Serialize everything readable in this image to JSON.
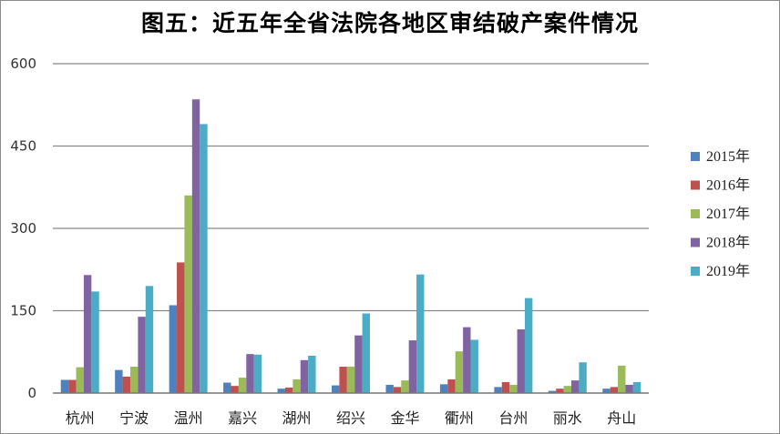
{
  "chart_data": {
    "type": "bar",
    "title": "图五：近五年全省法院各地区审结破产案件情况",
    "xlabel": "",
    "ylabel": "",
    "ylim": [
      0,
      600
    ],
    "yticks": [
      "0",
      "150",
      "300",
      "450",
      "600"
    ],
    "grid": true,
    "legend_position": "right",
    "categories": [
      "杭州",
      "宁波",
      "温州",
      "嘉兴",
      "湖州",
      "绍兴",
      "金华",
      "衢州",
      "台州",
      "丽水",
      "舟山"
    ],
    "series": [
      {
        "name": "2015年",
        "color": "#4f81bd",
        "values": [
          24,
          42,
          160,
          19,
          8,
          14,
          15,
          16,
          11,
          4,
          8
        ]
      },
      {
        "name": "2016年",
        "color": "#c0504d",
        "values": [
          24,
          30,
          238,
          13,
          10,
          48,
          11,
          25,
          20,
          8,
          11
        ]
      },
      {
        "name": "2017年",
        "color": "#9bbb59",
        "values": [
          47,
          48,
          360,
          28,
          25,
          48,
          23,
          76,
          15,
          13,
          50
        ]
      },
      {
        "name": "2018年",
        "color": "#8064a2",
        "values": [
          215,
          139,
          535,
          71,
          60,
          105,
          96,
          120,
          116,
          23,
          15
        ]
      },
      {
        "name": "2019年",
        "color": "#4bacc6",
        "values": [
          185,
          195,
          490,
          70,
          68,
          145,
          216,
          97,
          173,
          56,
          20
        ]
      }
    ]
  }
}
